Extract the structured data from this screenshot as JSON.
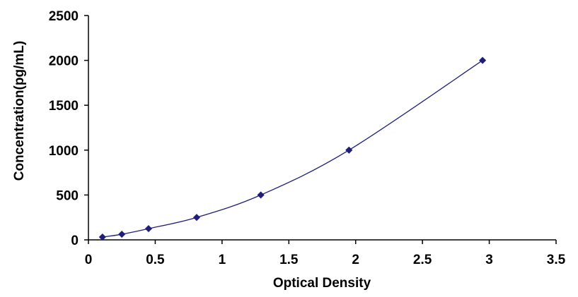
{
  "colors": {
    "series": "#1f1f7a",
    "axis": "#000000",
    "background": "#ffffff"
  },
  "chart_data": {
    "type": "scatter",
    "title": "",
    "xlabel": "Optical Density",
    "ylabel": "Concentration(pg/mL)",
    "xlim": [
      0,
      3.5
    ],
    "ylim": [
      0,
      2500
    ],
    "xticks": [
      0,
      0.5,
      1,
      1.5,
      2,
      2.5,
      3,
      3.5
    ],
    "xtick_labels": [
      "0",
      "0.5",
      "1",
      "1.5",
      "2",
      "2.5",
      "3",
      "3.5"
    ],
    "yticks": [
      0,
      500,
      1000,
      1500,
      2000,
      2500
    ],
    "ytick_labels": [
      "0",
      "500",
      "1000",
      "1500",
      "2000",
      "2500"
    ],
    "grid": false,
    "legend": "none",
    "smooth_line": true,
    "series": [
      {
        "marker": "diamond",
        "x": [
          0.105,
          0.25,
          0.45,
          0.81,
          1.29,
          1.95,
          2.95
        ],
        "y": [
          31.25,
          62.5,
          125,
          250,
          500,
          1000,
          2000
        ]
      }
    ]
  }
}
